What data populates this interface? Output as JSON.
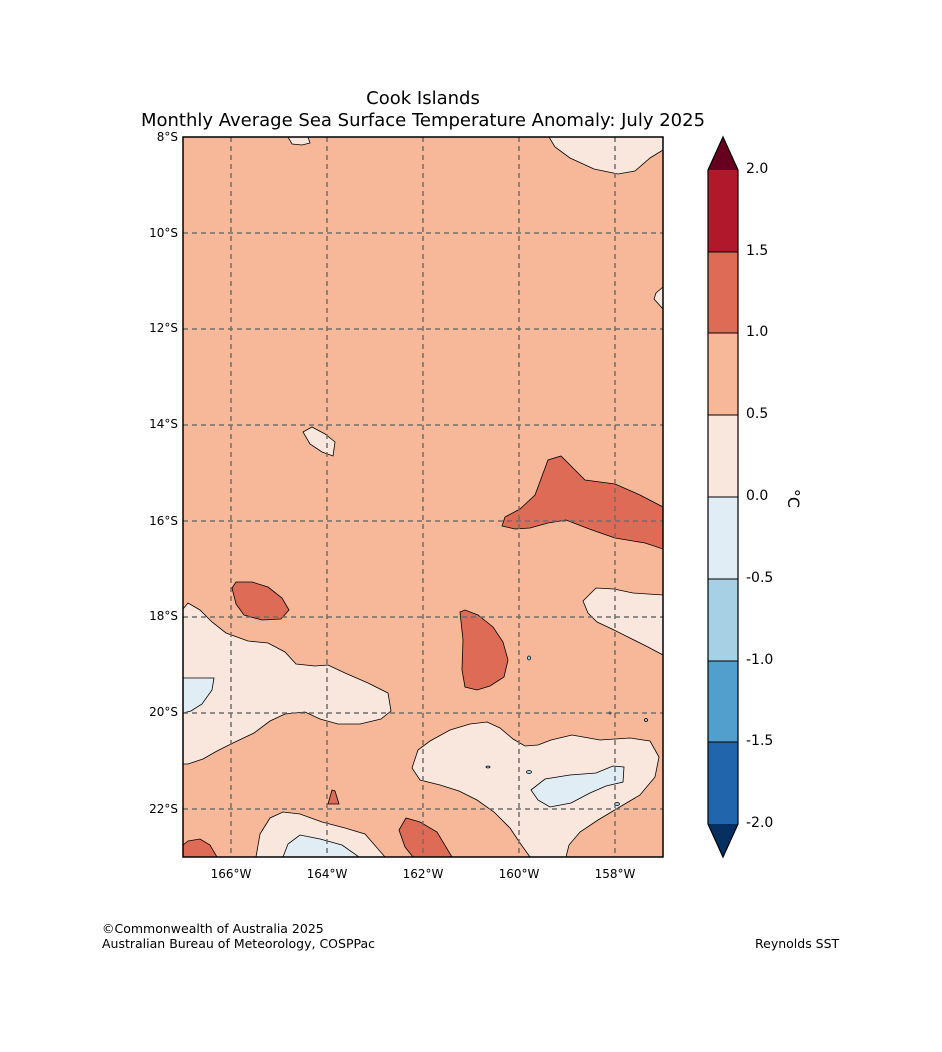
{
  "title": {
    "region": "Cook Islands",
    "subtitle": "Monthly Average Sea Surface Temperature Anomaly: July 2025"
  },
  "map": {
    "lat_ticks": [
      "8°S",
      "10°S",
      "12°S",
      "14°S",
      "16°S",
      "18°S",
      "20°S",
      "22°S"
    ],
    "lon_ticks": [
      "166°W",
      "164°W",
      "162°W",
      "160°W",
      "158°W"
    ],
    "lat_range": [
      -23.0,
      -8.0
    ],
    "lon_range": [
      -167.0,
      -157.0
    ],
    "gridlines": true
  },
  "colorbar": {
    "unit": "°C",
    "ticks": [
      "2.0",
      "1.5",
      "1.0",
      "0.5",
      "0.0",
      "-0.5",
      "-1.0",
      "-1.5",
      "-2.0"
    ],
    "colors": {
      "above_2.0": "#67001f",
      "1.5_to_2.0": "#b2182b",
      "1.0_to_1.5": "#de6b55",
      "0.5_to_1.0": "#f6b898",
      "0.0_to_0.5": "#f9e7dd",
      "-0.5_to_0.0": "#e1edf4",
      "-1.0_to_-0.5": "#a7d0e4",
      "-1.5_to_-1.0": "#529fcd",
      "-2.0_to_-1.5": "#2166ac",
      "below_-2.0": "#053061"
    }
  },
  "footer": {
    "copyright": "©Commonwealth of Australia 2025",
    "org": "Australian Bureau of Meteorology, COSPPac",
    "source": "Reynolds SST"
  }
}
